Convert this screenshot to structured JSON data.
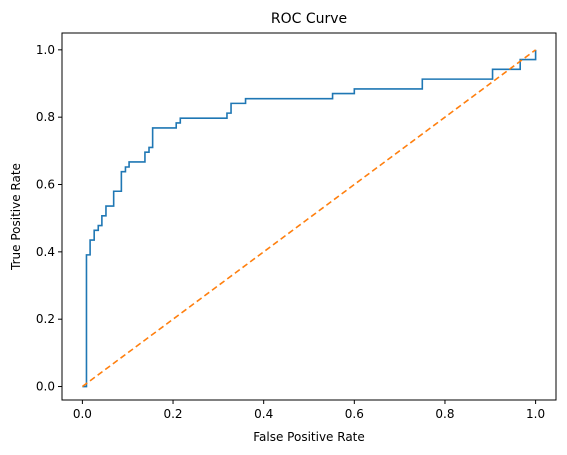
{
  "chart_data": {
    "type": "line",
    "title": "ROC Curve",
    "xlabel": "False Positive Rate",
    "ylabel": "True Positive Rate",
    "xlim": [
      -0.045,
      1.045
    ],
    "ylim": [
      -0.04,
      1.05
    ],
    "xticks": [
      0.0,
      0.2,
      0.4,
      0.6,
      0.8,
      1.0
    ],
    "xtick_labels": [
      "0.0",
      "0.2",
      "0.4",
      "0.6",
      "0.8",
      "1.0"
    ],
    "yticks": [
      0.0,
      0.2,
      0.4,
      0.6,
      0.8,
      1.0
    ],
    "ytick_labels": [
      "0.0",
      "0.2",
      "0.4",
      "0.6",
      "0.8",
      "1.0"
    ],
    "grid": false,
    "series": [
      {
        "style": "solid",
        "color": "#1f77b4",
        "x": [
          0.0,
          0.009,
          0.009,
          0.017,
          0.017,
          0.026,
          0.026,
          0.035,
          0.035,
          0.043,
          0.043,
          0.052,
          0.052,
          0.069,
          0.069,
          0.086,
          0.086,
          0.095,
          0.095,
          0.103,
          0.103,
          0.121,
          0.121,
          0.138,
          0.138,
          0.147,
          0.147,
          0.155,
          0.155,
          0.164,
          0.164,
          0.207,
          0.207,
          0.216,
          0.216,
          0.319,
          0.319,
          0.328,
          0.328,
          0.345,
          0.345,
          0.36,
          0.36,
          0.552,
          0.552,
          0.578,
          0.578,
          0.6,
          0.6,
          0.698,
          0.698,
          0.75,
          0.75,
          0.853,
          0.853,
          0.905,
          0.905,
          0.966,
          0.966,
          0.978,
          0.978,
          1.0,
          1.0
        ],
        "y": [
          0.0,
          0.0,
          0.391,
          0.391,
          0.435,
          0.435,
          0.464,
          0.464,
          0.478,
          0.478,
          0.507,
          0.507,
          0.536,
          0.536,
          0.58,
          0.58,
          0.638,
          0.638,
          0.652,
          0.652,
          0.667,
          0.667,
          0.667,
          0.667,
          0.696,
          0.696,
          0.71,
          0.71,
          0.768,
          0.768,
          0.768,
          0.768,
          0.783,
          0.783,
          0.797,
          0.797,
          0.812,
          0.812,
          0.841,
          0.841,
          0.841,
          0.841,
          0.855,
          0.855,
          0.87,
          0.87,
          0.87,
          0.87,
          0.884,
          0.884,
          0.884,
          0.884,
          0.913,
          0.913,
          0.913,
          0.913,
          0.942,
          0.942,
          0.971,
          0.971,
          0.971,
          0.971,
          1.0
        ]
      },
      {
        "style": "dashed",
        "color": "#ff7f0e",
        "x": [
          0.0,
          1.0
        ],
        "y": [
          0.0,
          1.0
        ]
      }
    ]
  }
}
